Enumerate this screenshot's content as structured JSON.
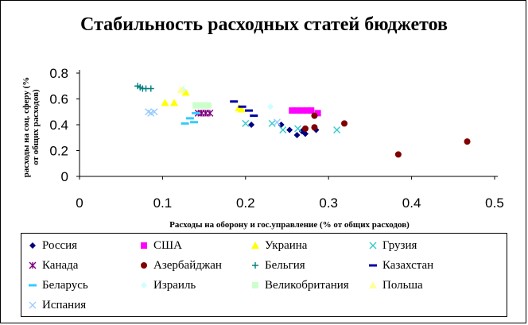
{
  "chart_data": {
    "type": "scatter",
    "title": "Стабильность расходных статей бюджетов",
    "xlabel": "Расходы на оборону и гос.управление (% от общих расходов)",
    "ylabel": [
      "рaсходы на соц. сферу (%",
      "от общих расходов)"
    ],
    "xlim": [
      0,
      0.5
    ],
    "ylim": [
      0,
      0.8
    ],
    "x_ticks": [
      "0",
      "0.1",
      "0.2",
      "0.3",
      "0.4",
      "0.5"
    ],
    "y_ticks": [
      "0",
      "0.2",
      "0.4",
      "0.6",
      "0.8"
    ],
    "grid": false,
    "legend_position": "bottom",
    "series": [
      {
        "name": "Россия",
        "marker": "diamond",
        "color": "#000080",
        "points": [
          [
            0.207,
            0.4
          ],
          [
            0.243,
            0.4
          ],
          [
            0.253,
            0.36
          ],
          [
            0.262,
            0.32
          ],
          [
            0.268,
            0.35
          ],
          [
            0.272,
            0.33
          ],
          [
            0.285,
            0.36
          ]
        ]
      },
      {
        "name": "США",
        "marker": "square",
        "color": "#ff00ff",
        "points": [
          [
            0.256,
            0.51
          ],
          [
            0.262,
            0.51
          ],
          [
            0.268,
            0.51
          ],
          [
            0.274,
            0.51
          ],
          [
            0.279,
            0.51
          ],
          [
            0.287,
            0.49
          ]
        ]
      },
      {
        "name": "Украина",
        "marker": "triangle",
        "color": "#ffff00",
        "points": [
          [
            0.103,
            0.57
          ],
          [
            0.114,
            0.57
          ],
          [
            0.125,
            0.67
          ],
          [
            0.128,
            0.65
          ],
          [
            0.192,
            0.53
          ],
          [
            0.195,
            0.52
          ]
        ]
      },
      {
        "name": "Грузия",
        "marker": "x",
        "color": "#33cccc",
        "points": [
          [
            0.2,
            0.41
          ],
          [
            0.232,
            0.41
          ],
          [
            0.245,
            0.36
          ],
          [
            0.263,
            0.37
          ],
          [
            0.31,
            0.36
          ]
        ]
      },
      {
        "name": "Канада",
        "marker": "star",
        "color": "#800080",
        "points": [
          [
            0.143,
            0.49
          ],
          [
            0.147,
            0.49
          ],
          [
            0.152,
            0.49
          ],
          [
            0.157,
            0.49
          ]
        ]
      },
      {
        "name": "Азербайджан",
        "marker": "circle",
        "color": "#800000",
        "points": [
          [
            0.272,
            0.37
          ],
          [
            0.283,
            0.47
          ],
          [
            0.283,
            0.38
          ],
          [
            0.319,
            0.41
          ],
          [
            0.384,
            0.17
          ],
          [
            0.467,
            0.27
          ]
        ]
      },
      {
        "name": "Бельгия",
        "marker": "plus",
        "color": "#008080",
        "points": [
          [
            0.07,
            0.7
          ],
          [
            0.073,
            0.69
          ],
          [
            0.076,
            0.68
          ],
          [
            0.08,
            0.68
          ],
          [
            0.086,
            0.68
          ]
        ]
      },
      {
        "name": "Казахстан",
        "marker": "dash",
        "color": "#0000a0",
        "points": [
          [
            0.186,
            0.58
          ],
          [
            0.196,
            0.54
          ],
          [
            0.204,
            0.51
          ],
          [
            0.21,
            0.47
          ]
        ]
      },
      {
        "name": "Беларусь",
        "marker": "dash",
        "color": "#33ccff",
        "points": [
          [
            0.127,
            0.41
          ],
          [
            0.133,
            0.45
          ],
          [
            0.138,
            0.42
          ],
          [
            0.14,
            0.49
          ]
        ]
      },
      {
        "name": "Израиль",
        "marker": "diamond",
        "color": "#ccffff",
        "points": [
          [
            0.125,
            0.67
          ],
          [
            0.23,
            0.54
          ]
        ]
      },
      {
        "name": "Великобритания",
        "marker": "square",
        "color": "#ccffcc",
        "points": [
          [
            0.14,
            0.55
          ],
          [
            0.145,
            0.55
          ],
          [
            0.15,
            0.55
          ],
          [
            0.155,
            0.55
          ]
        ]
      },
      {
        "name": "Польша",
        "marker": "triangle",
        "color": "#ffff99",
        "points": [
          [
            0.122,
            0.67
          ]
        ]
      },
      {
        "name": "Испания",
        "marker": "x",
        "color": "#99ccff",
        "points": [
          [
            0.083,
            0.5
          ],
          [
            0.086,
            0.49
          ],
          [
            0.09,
            0.5
          ],
          [
            0.238,
            0.42
          ]
        ]
      }
    ]
  }
}
